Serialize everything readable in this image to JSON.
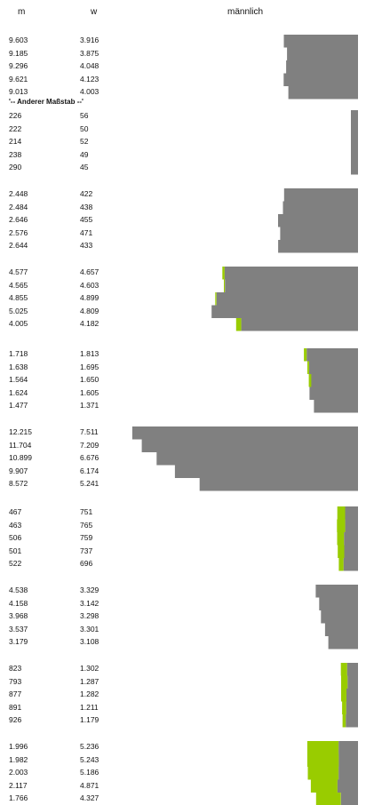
{
  "header": {
    "m": "m",
    "w": "w",
    "chart": "männlich"
  },
  "scale_note": "'-- Anderer Maßstab --'",
  "colors": {
    "male_bar": "#808080",
    "female_excess": "#99cc00"
  },
  "chart_data": {
    "type": "bar",
    "title": "männlich",
    "orientation": "horizontal, bars extend leftward from a common right baseline",
    "series": [
      {
        "name": "m"
      },
      {
        "name": "w"
      }
    ],
    "groups": [
      {
        "m": [
          "9.603",
          "9.185",
          "9.296",
          "9.621",
          "9.013"
        ],
        "w": [
          "3.916",
          "3.875",
          "4.048",
          "4.123",
          "4.003"
        ]
      },
      {
        "m": [
          "226",
          "222",
          "214",
          "238",
          "290"
        ],
        "w": [
          "56",
          "50",
          "52",
          "49",
          "45"
        ]
      },
      {
        "m": [
          "2.448",
          "2.484",
          "2.646",
          "2.576",
          "2.644"
        ],
        "w": [
          "422",
          "438",
          "455",
          "471",
          "433"
        ]
      },
      {
        "m": [
          "4.577",
          "4.565",
          "4.855",
          "5.025",
          "4.005"
        ],
        "w": [
          "4.657",
          "4.603",
          "4.899",
          "4.809",
          "4.182"
        ]
      },
      {
        "m": [
          "1.718",
          "1.638",
          "1.564",
          "1.624",
          "1.477"
        ],
        "w": [
          "1.813",
          "1.695",
          "1.650",
          "1.605",
          "1.371"
        ]
      },
      {
        "m": [
          "12.215",
          "11.704",
          "10.899",
          "9.907",
          "8.572"
        ],
        "w": [
          "7.511",
          "7.209",
          "6.676",
          "6.174",
          "5.241"
        ]
      },
      {
        "m": [
          "467",
          "463",
          "506",
          "501",
          "522"
        ],
        "w": [
          "751",
          "765",
          "759",
          "737",
          "696"
        ]
      },
      {
        "m": [
          "4.538",
          "4.158",
          "3.968",
          "3.537",
          "3.179"
        ],
        "w": [
          "3.329",
          "3.142",
          "3.298",
          "3.301",
          "3.108"
        ]
      },
      {
        "m": [
          "823",
          "793",
          "877",
          "891",
          "926"
        ],
        "w": [
          "1.302",
          "1.287",
          "1.282",
          "1.211",
          "1.179"
        ]
      },
      {
        "m": [
          "1.996",
          "1.982",
          "2.003",
          "2.117",
          "1.766"
        ],
        "w": [
          "5.236",
          "5.243",
          "5.186",
          "4.871",
          "4.327"
        ]
      }
    ]
  }
}
